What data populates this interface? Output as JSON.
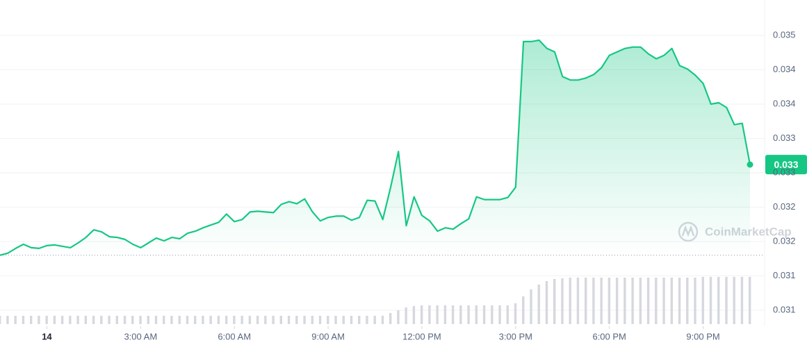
{
  "chart_data": {
    "type": "line",
    "x": [
      -1.5,
      -1.25,
      -1,
      -0.75,
      -0.5,
      -0.25,
      0,
      0.25,
      0.5,
      0.75,
      1,
      1.25,
      1.5,
      1.75,
      2,
      2.25,
      2.5,
      2.75,
      3,
      3.25,
      3.5,
      3.75,
      4,
      4.25,
      4.5,
      4.75,
      5,
      5.25,
      5.5,
      5.75,
      6,
      6.25,
      6.5,
      6.75,
      7,
      7.25,
      7.5,
      7.75,
      8,
      8.25,
      8.5,
      8.75,
      9,
      9.25,
      9.5,
      9.75,
      10,
      10.25,
      10.5,
      10.75,
      11,
      11.25,
      11.5,
      11.75,
      12,
      12.25,
      12.5,
      12.75,
      13,
      13.25,
      13.5,
      13.75,
      14,
      14.25,
      14.5,
      14.75,
      15,
      15.25,
      15.5,
      15.75,
      16,
      16.25,
      16.5,
      16.75,
      17,
      17.25,
      17.5,
      17.75,
      18,
      18.25,
      18.5,
      18.75,
      19,
      19.25,
      19.5,
      19.75,
      20,
      20.25,
      20.5,
      20.75,
      21,
      21.25,
      21.5,
      21.75,
      22,
      22.25,
      22.5
    ],
    "series": [
      {
        "color": "#16c784",
        "values": [
          0.0317,
          0.03173,
          0.0318,
          0.03186,
          0.03181,
          0.0318,
          0.03184,
          0.03185,
          0.03183,
          0.03181,
          0.03188,
          0.03196,
          0.03207,
          0.03204,
          0.03197,
          0.03196,
          0.03193,
          0.03186,
          0.03181,
          0.03188,
          0.03195,
          0.03191,
          0.03196,
          0.03194,
          0.03202,
          0.03205,
          0.0321,
          0.03214,
          0.03218,
          0.0323,
          0.03219,
          0.03222,
          0.03233,
          0.03234,
          0.03233,
          0.03232,
          0.03244,
          0.03248,
          0.03245,
          0.03252,
          0.03233,
          0.0322,
          0.03225,
          0.03227,
          0.03227,
          0.03221,
          0.03225,
          0.0325,
          0.03249,
          0.03222,
          0.03269,
          0.03321,
          0.03213,
          0.03255,
          0.03228,
          0.0322,
          0.03205,
          0.0321,
          0.03208,
          0.03216,
          0.03223,
          0.03255,
          0.03251,
          0.03251,
          0.03251,
          0.03254,
          0.03269,
          0.03481,
          0.03481,
          0.03483,
          0.03471,
          0.03466,
          0.0343,
          0.03425,
          0.03425,
          0.03428,
          0.03433,
          0.03443,
          0.03461,
          0.03466,
          0.03471,
          0.03473,
          0.03473,
          0.03463,
          0.03456,
          0.03461,
          0.03471,
          0.03446,
          0.03441,
          0.03432,
          0.0342,
          0.0339,
          0.03392,
          0.03385,
          0.0336,
          0.03362,
          0.03302
        ]
      },
      {
        "color": "#d5d8de",
        "values": [
          12,
          12,
          12,
          12,
          12,
          12,
          12,
          12,
          12,
          12,
          12,
          12,
          12,
          12,
          12,
          12,
          12,
          12,
          12,
          12,
          12,
          12,
          12,
          12,
          12,
          12,
          12,
          12,
          12,
          12,
          12,
          12,
          12,
          12,
          12,
          12,
          12,
          12,
          12,
          12,
          12,
          12,
          12,
          12,
          12,
          12,
          12,
          12,
          12,
          12,
          16,
          20,
          24,
          26,
          27,
          27,
          27,
          27,
          27,
          27,
          27,
          27,
          27,
          27,
          27,
          27,
          30,
          40,
          50,
          57,
          62,
          65,
          66,
          67,
          67,
          67,
          67,
          67,
          67,
          67,
          67,
          67,
          67,
          67,
          67,
          67,
          67,
          67,
          67,
          67,
          68,
          68,
          68,
          68,
          68,
          68,
          68
        ]
      }
    ],
    "xlim": [
      -1.5,
      22.5
    ],
    "xticks": [
      {
        "value": 0,
        "label": "14"
      },
      {
        "value": 3,
        "label": "3:00 AM"
      },
      {
        "value": 6,
        "label": "6:00 AM"
      },
      {
        "value": 9,
        "label": "9:00 AM"
      },
      {
        "value": 12,
        "label": "12:00 PM"
      },
      {
        "value": 15,
        "label": "3:00 PM"
      },
      {
        "value": 18,
        "label": "6:00 PM"
      },
      {
        "value": 21,
        "label": "9:00 PM"
      }
    ],
    "ylim": [
      0.0304,
      0.0354
    ],
    "yticks": [
      {
        "value": 0.0349,
        "label": "0.035"
      },
      {
        "value": 0.0344,
        "label": "0.034"
      },
      {
        "value": 0.0339,
        "label": "0.034"
      },
      {
        "value": 0.0334,
        "label": "0.033"
      },
      {
        "value": 0.0329,
        "label": "0.033"
      },
      {
        "value": 0.0324,
        "label": "0.032"
      },
      {
        "value": 0.0319,
        "label": "0.032"
      },
      {
        "value": 0.0314,
        "label": "0.031"
      },
      {
        "value": 0.0309,
        "label": "0.031"
      }
    ],
    "grid": true,
    "current_price_label": "0.033",
    "watermark": "CoinMarketCap"
  }
}
